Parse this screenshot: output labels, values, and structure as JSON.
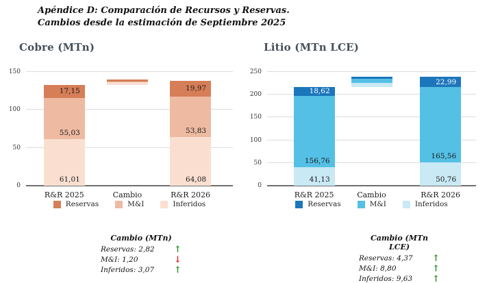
{
  "page": {
    "title_line1": "Apéndice D: Comparación de Recursos y Reservas.",
    "title_line2": "Cambios desde la estimación de Septiembre 2025"
  },
  "arrow_colors": {
    "up": "#2a8f2a",
    "down": "#e32222"
  },
  "chart_data": [
    {
      "type": "bar",
      "stacked": true,
      "title": "Cobre (MTn)",
      "categories": [
        "R&R 2025",
        "Cambio",
        "R&R 2026"
      ],
      "ylim": [
        0,
        150
      ],
      "yticks": [
        0,
        50,
        100,
        150
      ],
      "grid": true,
      "legend_position": "bottom",
      "legend": [
        {
          "label": "Reservas",
          "color": "#d67e57"
        },
        {
          "label": "M&I",
          "color": "#eebaa2"
        },
        {
          "label": "Inferidos",
          "color": "#fadfd1"
        }
      ],
      "bars": [
        {
          "category": "R&R 2025",
          "base": 0,
          "segments": [
            {
              "name": "Inferidos",
              "value": 61.01,
              "label": "61,01",
              "color": "#fadfd1",
              "label_color": "#1a1a1a"
            },
            {
              "name": "M&I",
              "value": 55.03,
              "label": "55,03",
              "color": "#eebaa2",
              "label_color": "#1a1a1a"
            },
            {
              "name": "Reservas",
              "value": 17.15,
              "label": "17,15",
              "color": "#d67e57",
              "label_color": "#1a1a1a"
            }
          ]
        },
        {
          "category": "Cambio",
          "base": 133.19,
          "segments": [
            {
              "name": "Inferidos",
              "value": 3.07,
              "label": "",
              "color": "#fadfd1",
              "label_color": "#1a1a1a"
            },
            {
              "name": "M&I",
              "value": 1.2,
              "label": "",
              "color": "#eebaa2",
              "label_color": "#1a1a1a"
            },
            {
              "name": "Reservas",
              "value": 2.82,
              "label": "",
              "color": "#d67e57",
              "label_color": "#1a1a1a"
            }
          ]
        },
        {
          "category": "R&R 2026",
          "base": 0,
          "segments": [
            {
              "name": "Inferidos",
              "value": 64.08,
              "label": "64,08",
              "color": "#fadfd1",
              "label_color": "#1a1a1a"
            },
            {
              "name": "M&I",
              "value": 53.83,
              "label": "53,83",
              "color": "#eebaa2",
              "label_color": "#1a1a1a"
            },
            {
              "name": "Reservas",
              "value": 19.97,
              "label": "19,97",
              "color": "#d67e57",
              "label_color": "#1a1a1a"
            }
          ]
        }
      ]
    },
    {
      "type": "bar",
      "stacked": true,
      "title": "Litio  (MTn LCE)",
      "categories": [
        "R&R 2025",
        "Cambio",
        "R&R 2026"
      ],
      "ylim": [
        0,
        250
      ],
      "yticks": [
        0,
        50,
        100,
        150,
        200,
        250
      ],
      "grid": true,
      "legend_position": "bottom",
      "legend": [
        {
          "label": "Reservas",
          "color": "#1c76bc"
        },
        {
          "label": "M&I",
          "color": "#55c0e5"
        },
        {
          "label": "Inferidos",
          "color": "#c9e9f4"
        }
      ],
      "bars": [
        {
          "category": "R&R 2025",
          "base": 0,
          "segments": [
            {
              "name": "Inferidos",
              "value": 41.13,
              "label": "41,13",
              "color": "#c9e9f4",
              "label_color": "#1a1a1a"
            },
            {
              "name": "M&I",
              "value": 156.76,
              "label": "156,76",
              "color": "#55c0e5",
              "label_color": "#1a1a1a"
            },
            {
              "name": "Reservas",
              "value": 18.62,
              "label": "18,62",
              "color": "#1c76bc",
              "label_color": "#ffffff"
            }
          ]
        },
        {
          "category": "Cambio",
          "base": 216.51,
          "segments": [
            {
              "name": "Inferidos",
              "value": 9.63,
              "label": "",
              "color": "#c9e9f4",
              "label_color": "#1a1a1a"
            },
            {
              "name": "M&I",
              "value": 8.8,
              "label": "",
              "color": "#55c0e5",
              "label_color": "#1a1a1a"
            },
            {
              "name": "Reservas",
              "value": 4.37,
              "label": "",
              "color": "#1c76bc",
              "label_color": "#ffffff"
            }
          ]
        },
        {
          "category": "R&R 2026",
          "base": 0,
          "segments": [
            {
              "name": "Inferidos",
              "value": 50.76,
              "label": "50,76",
              "color": "#c9e9f4",
              "label_color": "#1a1a1a"
            },
            {
              "name": "M&I",
              "value": 165.56,
              "label": "165,56",
              "color": "#55c0e5",
              "label_color": "#1a1a1a"
            },
            {
              "name": "Reservas",
              "value": 22.99,
              "label": "22,99",
              "color": "#1c76bc",
              "label_color": "#ffffff"
            }
          ]
        }
      ]
    }
  ],
  "annotations": [
    {
      "title": "Cambio (MTn)",
      "rows": [
        {
          "text": "Reservas: 2,82",
          "arrow": "up"
        },
        {
          "text": "M&I: 1,20",
          "arrow": "down"
        },
        {
          "text": "Inferidos: 3,07",
          "arrow": "up"
        }
      ]
    },
    {
      "title": "Cambio (MTn LCE)",
      "rows": [
        {
          "text": "Reservas: 4,37",
          "arrow": "up"
        },
        {
          "text": "M&I: 8,80",
          "arrow": "up"
        },
        {
          "text": "Inferidos: 9,63",
          "arrow": "up"
        }
      ]
    }
  ]
}
